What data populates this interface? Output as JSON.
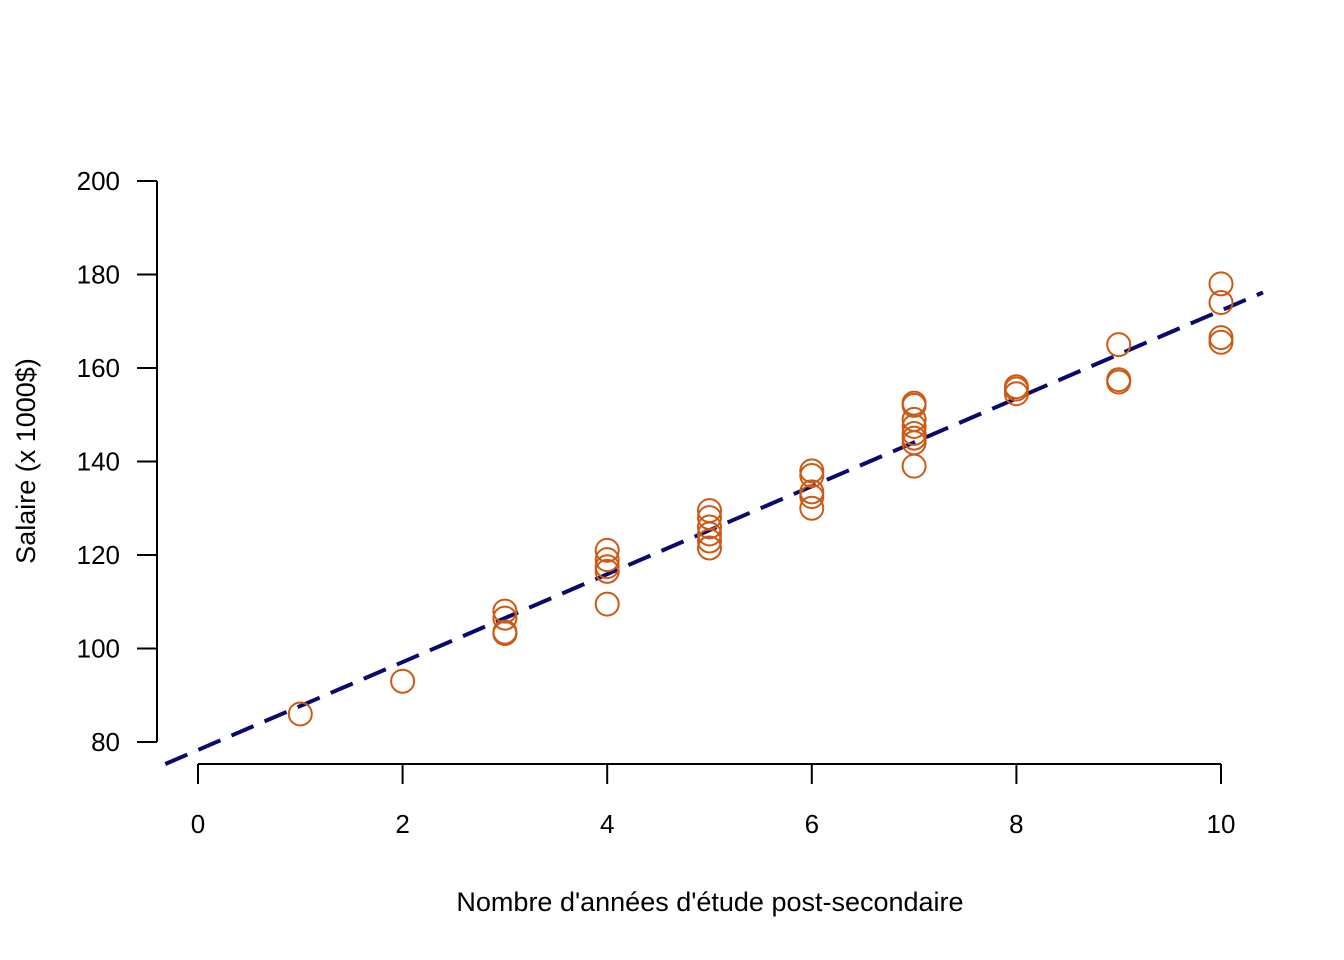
{
  "chart_data": {
    "type": "scatter",
    "title": "",
    "xlabel": "Nombre d'années d'étude post-secondaire",
    "ylabel": "Salaire (x 1000$)",
    "xlim": [
      0,
      10
    ],
    "ylim": [
      80,
      200
    ],
    "x_ticks": [
      0,
      2,
      4,
      6,
      8,
      10
    ],
    "y_ticks": [
      80,
      100,
      120,
      140,
      160,
      180,
      200
    ],
    "grid": false,
    "point_color": "#cc5a14",
    "line_color": "#0a0a6e",
    "points": [
      {
        "x": 1,
        "y": 86
      },
      {
        "x": 2,
        "y": 93
      },
      {
        "x": 3,
        "y": 108
      },
      {
        "x": 3,
        "y": 106.5
      },
      {
        "x": 3,
        "y": 103.5
      },
      {
        "x": 3,
        "y": 103.2
      },
      {
        "x": 4,
        "y": 121
      },
      {
        "x": 4,
        "y": 119
      },
      {
        "x": 4,
        "y": 117.5
      },
      {
        "x": 4,
        "y": 116.5
      },
      {
        "x": 4,
        "y": 109.5
      },
      {
        "x": 5,
        "y": 129.5
      },
      {
        "x": 5,
        "y": 128
      },
      {
        "x": 5,
        "y": 126
      },
      {
        "x": 5,
        "y": 124.5
      },
      {
        "x": 5,
        "y": 123
      },
      {
        "x": 5,
        "y": 121.5
      },
      {
        "x": 6,
        "y": 138
      },
      {
        "x": 6,
        "y": 137
      },
      {
        "x": 6,
        "y": 133.5
      },
      {
        "x": 6,
        "y": 132.5
      },
      {
        "x": 6,
        "y": 130
      },
      {
        "x": 7,
        "y": 152.5
      },
      {
        "x": 7,
        "y": 152
      },
      {
        "x": 7,
        "y": 149
      },
      {
        "x": 7,
        "y": 147.5
      },
      {
        "x": 7,
        "y": 146
      },
      {
        "x": 7,
        "y": 145
      },
      {
        "x": 7,
        "y": 144
      },
      {
        "x": 7,
        "y": 139
      },
      {
        "x": 8,
        "y": 156
      },
      {
        "x": 8,
        "y": 155.5
      },
      {
        "x": 8,
        "y": 154.5
      },
      {
        "x": 9,
        "y": 165
      },
      {
        "x": 9,
        "y": 157.5
      },
      {
        "x": 9,
        "y": 157
      },
      {
        "x": 10,
        "y": 178
      },
      {
        "x": 10,
        "y": 174
      },
      {
        "x": 10,
        "y": 166.5
      },
      {
        "x": 10,
        "y": 165.5
      }
    ],
    "fit_line": {
      "intercept": 78.3,
      "slope": 9.4,
      "style": "dashed"
    }
  }
}
